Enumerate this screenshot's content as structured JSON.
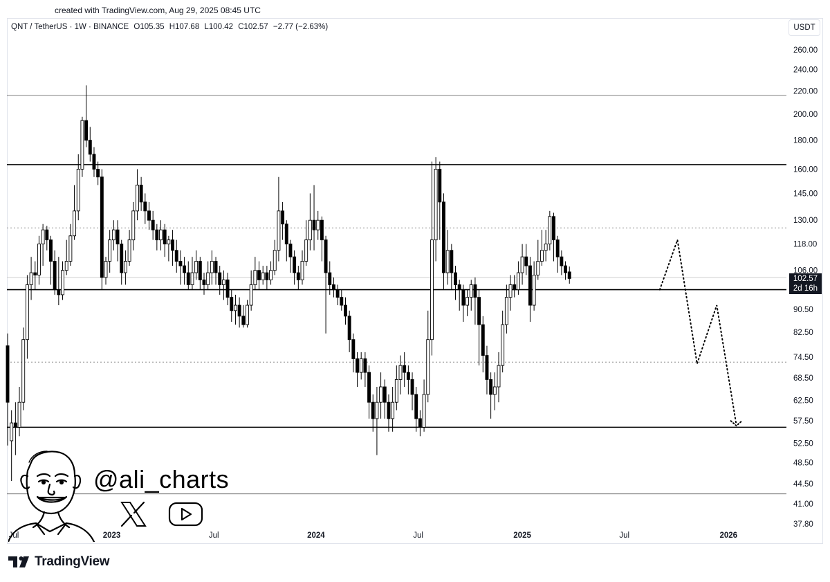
{
  "header": {
    "created": "created with TradingView.com, Aug 29, 2025 08:45 UTC"
  },
  "legend": {
    "symbol": "QNT / TetherUS · 1W · BINANCE",
    "open": "O105.35",
    "high": "H107.68",
    "low": "L100.42",
    "close": "C102.57",
    "change": "−2.77 (−2.63%)"
  },
  "currency_button": "USDT",
  "price_tag": {
    "price": "102.57",
    "countdown": "2d 16h"
  },
  "branding": {
    "logo_text": "TradingView",
    "handle": "@ali_charts"
  },
  "colors": {
    "ink": "#131722",
    "candle": "#000000",
    "grid": "#e0e3eb"
  },
  "chart_data": {
    "type": "candlestick",
    "scale": "log",
    "y_ticks": [
      260,
      240,
      220,
      200,
      180,
      160,
      145,
      130,
      118,
      106,
      90.5,
      82.5,
      74.5,
      68.5,
      62.5,
      57.5,
      52.5,
      48.5,
      44.5,
      41,
      37.8
    ],
    "y_tick_labels": [
      "260.00",
      "240.00",
      "220.00",
      "200.00",
      "180.00",
      "160.00",
      "145.00",
      "130.00",
      "118.00",
      "106.00",
      "90.50",
      "82.50",
      "74.50",
      "68.50",
      "62.50",
      "57.50",
      "52.50",
      "48.50",
      "44.50",
      "41.00",
      "37.80"
    ],
    "x_ticks": [
      {
        "label": "Jul",
        "week": 0,
        "bold": false
      },
      {
        "label": "2023",
        "week": 26.5,
        "bold": true
      },
      {
        "label": "Jul",
        "week": 52.5,
        "bold": false
      },
      {
        "label": "2024",
        "week": 78.5,
        "bold": true
      },
      {
        "label": "Jul",
        "week": 104.5,
        "bold": false
      },
      {
        "label": "2025",
        "week": 131,
        "bold": true
      },
      {
        "label": "Jul",
        "week": 157,
        "bold": false
      },
      {
        "label": "2026",
        "week": 183.5,
        "bold": true
      }
    ],
    "horizontal_levels": [
      {
        "price": 216,
        "style": "solid-thin"
      },
      {
        "price": 163,
        "style": "solid"
      },
      {
        "price": 126,
        "style": "dotted"
      },
      {
        "price": 103,
        "style": "solid-faint"
      },
      {
        "price": 98,
        "style": "solid"
      },
      {
        "price": 73,
        "style": "dotted"
      },
      {
        "price": 56,
        "style": "solid"
      },
      {
        "price": 42.7,
        "style": "solid-thin"
      }
    ],
    "projection_path": [
      {
        "week": 166,
        "price": 98
      },
      {
        "week": 170.5,
        "price": 120
      },
      {
        "week": 175.5,
        "price": 72.5
      },
      {
        "week": 180.5,
        "price": 92
      },
      {
        "week": 185.5,
        "price": 56.5
      }
    ],
    "candles": [
      [
        78,
        62,
        82,
        52
      ],
      [
        53,
        57,
        60,
        45
      ],
      [
        57,
        56,
        62,
        50
      ],
      [
        56,
        62,
        66,
        54
      ],
      [
        62,
        80,
        84,
        60
      ],
      [
        80,
        100,
        104,
        74
      ],
      [
        100,
        105,
        112,
        94
      ],
      [
        105,
        104,
        110,
        98
      ],
      [
        104,
        118,
        122,
        100
      ],
      [
        118,
        125,
        128,
        108
      ],
      [
        125,
        120,
        127,
        115
      ],
      [
        120,
        110,
        122,
        100
      ],
      [
        110,
        98,
        115,
        96
      ],
      [
        98,
        96,
        112,
        92
      ],
      [
        96,
        106,
        110,
        94
      ],
      [
        106,
        110,
        120,
        104
      ],
      [
        110,
        122,
        128,
        108
      ],
      [
        122,
        135,
        150,
        120
      ],
      [
        135,
        160,
        170,
        130
      ],
      [
        160,
        195,
        198,
        155
      ],
      [
        195,
        180,
        225,
        175
      ],
      [
        180,
        170,
        190,
        165
      ],
      [
        170,
        160,
        175,
        155
      ],
      [
        160,
        155,
        165,
        150
      ],
      [
        155,
        103,
        160,
        98
      ],
      [
        103,
        110,
        112,
        100
      ],
      [
        110,
        120,
        125,
        105
      ],
      [
        120,
        125,
        130,
        115
      ],
      [
        125,
        118,
        130,
        110
      ],
      [
        118,
        105,
        120,
        100
      ],
      [
        105,
        110,
        115,
        100
      ],
      [
        110,
        120,
        125,
        108
      ],
      [
        120,
        135,
        140,
        115
      ],
      [
        135,
        150,
        160,
        130
      ],
      [
        150,
        140,
        155,
        135
      ],
      [
        140,
        135,
        145,
        128
      ],
      [
        135,
        130,
        140,
        125
      ],
      [
        130,
        125,
        135,
        120
      ],
      [
        125,
        120,
        128,
        115
      ],
      [
        120,
        125,
        130,
        115
      ],
      [
        125,
        118,
        128,
        112
      ],
      [
        118,
        120,
        122,
        110
      ],
      [
        120,
        115,
        125,
        108
      ],
      [
        115,
        110,
        120,
        105
      ],
      [
        110,
        108,
        115,
        100
      ],
      [
        108,
        105,
        112,
        100
      ],
      [
        105,
        100,
        110,
        98
      ],
      [
        100,
        105,
        112,
        98
      ],
      [
        105,
        110,
        115,
        102
      ],
      [
        110,
        102,
        112,
        98
      ],
      [
        102,
        100,
        105,
        96
      ],
      [
        100,
        105,
        110,
        98
      ],
      [
        105,
        110,
        115,
        100
      ],
      [
        110,
        105,
        112,
        100
      ],
      [
        105,
        100,
        108,
        96
      ],
      [
        100,
        102,
        106,
        94
      ],
      [
        102,
        95,
        105,
        92
      ],
      [
        95,
        90,
        98,
        86
      ],
      [
        90,
        92,
        96,
        85
      ],
      [
        92,
        88,
        95,
        84
      ],
      [
        88,
        85,
        92,
        84
      ],
      [
        85,
        92,
        94,
        84
      ],
      [
        92,
        100,
        106,
        90
      ],
      [
        100,
        106,
        112,
        98
      ],
      [
        106,
        102,
        110,
        98
      ],
      [
        102,
        105,
        108,
        100
      ],
      [
        105,
        102,
        108,
        98
      ],
      [
        102,
        106,
        110,
        100
      ],
      [
        106,
        115,
        120,
        104
      ],
      [
        115,
        135,
        155,
        110
      ],
      [
        135,
        128,
        140,
        120
      ],
      [
        128,
        118,
        130,
        110
      ],
      [
        118,
        112,
        120,
        105
      ],
      [
        112,
        105,
        115,
        100
      ],
      [
        105,
        102,
        108,
        98
      ],
      [
        102,
        110,
        115,
        100
      ],
      [
        110,
        120,
        130,
        108
      ],
      [
        120,
        130,
        145,
        115
      ],
      [
        130,
        125,
        150,
        115
      ],
      [
        125,
        130,
        135,
        120
      ],
      [
        130,
        120,
        132,
        110
      ],
      [
        120,
        105,
        122,
        82
      ],
      [
        105,
        100,
        110,
        96
      ],
      [
        100,
        98,
        103,
        95
      ],
      [
        98,
        95,
        100,
        92
      ],
      [
        95,
        92,
        98,
        90
      ],
      [
        92,
        88,
        95,
        85
      ],
      [
        88,
        80,
        90,
        76
      ],
      [
        80,
        74,
        82,
        70
      ],
      [
        74,
        70,
        76,
        66
      ],
      [
        70,
        74,
        76,
        68
      ],
      [
        74,
        70,
        76,
        66
      ],
      [
        70,
        62,
        72,
        58
      ],
      [
        62,
        58,
        64,
        55
      ],
      [
        58,
        62,
        66,
        50
      ],
      [
        62,
        66,
        70,
        58
      ],
      [
        66,
        62,
        68,
        58
      ],
      [
        62,
        58,
        64,
        55
      ],
      [
        58,
        62,
        66,
        55
      ],
      [
        62,
        68,
        72,
        60
      ],
      [
        68,
        72,
        75,
        64
      ],
      [
        72,
        70,
        76,
        66
      ],
      [
        70,
        68,
        72,
        64
      ],
      [
        68,
        64,
        70,
        60
      ],
      [
        64,
        58,
        66,
        55
      ],
      [
        58,
        56,
        60,
        54
      ],
      [
        56,
        64,
        68,
        55
      ],
      [
        64,
        80,
        90,
        62
      ],
      [
        80,
        120,
        165,
        75
      ],
      [
        120,
        160,
        168,
        110
      ],
      [
        160,
        140,
        165,
        120
      ],
      [
        140,
        105,
        145,
        98
      ],
      [
        105,
        115,
        125,
        100
      ],
      [
        115,
        105,
        118,
        98
      ],
      [
        105,
        100,
        108,
        94
      ],
      [
        100,
        98,
        102,
        90
      ],
      [
        98,
        92,
        100,
        86
      ],
      [
        92,
        95,
        98,
        88
      ],
      [
        95,
        100,
        102,
        90
      ],
      [
        100,
        95,
        103,
        85
      ],
      [
        95,
        85,
        98,
        72
      ],
      [
        85,
        75,
        88,
        70
      ],
      [
        75,
        68,
        78,
        64
      ],
      [
        68,
        64,
        70,
        58
      ],
      [
        64,
        66,
        70,
        60
      ],
      [
        66,
        72,
        76,
        62
      ],
      [
        72,
        85,
        90,
        70
      ],
      [
        85,
        95,
        100,
        82
      ],
      [
        95,
        100,
        104,
        90
      ],
      [
        100,
        98,
        104,
        95
      ],
      [
        98,
        105,
        110,
        96
      ],
      [
        105,
        112,
        118,
        100
      ],
      [
        112,
        108,
        118,
        104
      ],
      [
        108,
        92,
        112,
        86
      ],
      [
        92,
        104,
        110,
        90
      ],
      [
        104,
        110,
        120,
        102
      ],
      [
        110,
        115,
        125,
        108
      ],
      [
        115,
        118,
        125,
        110
      ],
      [
        118,
        132,
        135,
        115
      ],
      [
        132,
        120,
        134,
        110
      ],
      [
        120,
        112,
        122,
        105
      ],
      [
        112,
        108,
        115,
        104
      ],
      [
        108,
        105,
        110,
        102
      ],
      [
        105.35,
        102.57,
        107.68,
        100.42
      ]
    ]
  }
}
